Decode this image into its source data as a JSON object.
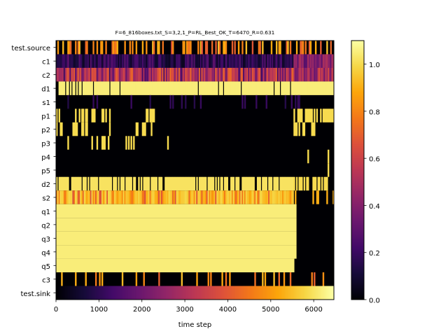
{
  "chart_data": {
    "type": "heatmap",
    "title": "F=6_816boxes.txt_S=3,2,1_P=RL_Best_OK_T=6470_R=0.631",
    "xlabel": "time step",
    "ylabel": "",
    "xlim": [
      0,
      6470
    ],
    "x_ticks": [
      0,
      1000,
      2000,
      3000,
      4000,
      5000,
      6000
    ],
    "colormap": "inferno",
    "color_range": [
      0.0,
      1.1
    ],
    "colorbar_ticks": [
      "0.0",
      "0.2",
      "0.4",
      "0.6",
      "0.8",
      "1.0"
    ],
    "colorbar_tick_values": [
      0.0,
      0.2,
      0.4,
      0.6,
      0.8,
      1.0
    ],
    "rows": [
      {
        "name": "test.source",
        "pattern": "sparse",
        "base": 0.0,
        "level": 0.95,
        "density": 0.38
      },
      {
        "name": "c1",
        "pattern": "dense",
        "base": 0.12,
        "level": 0.3,
        "density": 0.4,
        "tail": {
          "from": 5500,
          "value": 0.45
        }
      },
      {
        "name": "c2",
        "pattern": "dense",
        "base": 0.4,
        "level": 0.75,
        "density": 0.55,
        "tail": {
          "from": 5550,
          "value": 0.55
        }
      },
      {
        "name": "d1",
        "pattern": "mostly-high",
        "base": 1.05,
        "level": 0.0,
        "density": 0.07
      },
      {
        "name": "s1",
        "pattern": "sparse",
        "base": 0.0,
        "level": 0.2,
        "density": 0.1
      },
      {
        "name": "p1",
        "pattern": "bursts",
        "base": 0.0,
        "level": 1.0,
        "density": 0.3,
        "bursts": [
          [
            0,
            120
          ],
          [
            420,
            900
          ],
          [
            1000,
            1240
          ],
          [
            1950,
            2380
          ],
          [
            5450,
            6470
          ]
        ]
      },
      {
        "name": "p2",
        "pattern": "bursts",
        "base": 0.0,
        "level": 1.0,
        "density": 0.28,
        "bursts": [
          [
            0,
            120
          ],
          [
            380,
            780
          ],
          [
            1100,
            1300
          ],
          [
            1850,
            2250
          ],
          [
            5450,
            6000
          ]
        ]
      },
      {
        "name": "p3",
        "pattern": "bursts",
        "base": 0.0,
        "level": 1.0,
        "density": 0.2,
        "bursts": [
          [
            250,
            500
          ],
          [
            800,
            950
          ],
          [
            1050,
            1250
          ],
          [
            1550,
            1950
          ],
          [
            2550,
            2600
          ]
        ]
      },
      {
        "name": "p4",
        "pattern": "bursts",
        "base": 0.0,
        "level": 1.0,
        "density": 0.5,
        "bursts": [
          [
            5850,
            5900
          ],
          [
            6300,
            6350
          ]
        ]
      },
      {
        "name": "p5",
        "pattern": "bursts",
        "base": 0.0,
        "level": 1.0,
        "density": 0.5,
        "bursts": [
          [
            6300,
            6330
          ]
        ]
      },
      {
        "name": "d2",
        "pattern": "mostly-high",
        "base": 1.02,
        "level": 0.0,
        "density": 0.18,
        "end": 5500
      },
      {
        "name": "s2",
        "pattern": "mixed-high",
        "base": 0.95,
        "level": 0.8,
        "density": 0.35,
        "end": 5500
      },
      {
        "name": "q1",
        "pattern": "solid",
        "base": 1.05,
        "end": 5600
      },
      {
        "name": "q2",
        "pattern": "solid",
        "base": 1.05,
        "end": 5600
      },
      {
        "name": "q3",
        "pattern": "solid",
        "base": 1.05,
        "end": 5600
      },
      {
        "name": "q4",
        "pattern": "solid",
        "base": 1.05,
        "end": 5600
      },
      {
        "name": "q5",
        "pattern": "solid",
        "base": 1.05,
        "end": 5550
      },
      {
        "name": "c3",
        "pattern": "sparse",
        "base": 0.0,
        "level": 0.95,
        "density": 0.12
      },
      {
        "name": "test.sink",
        "pattern": "gradient",
        "from": 0.0,
        "to": 1.1
      }
    ]
  }
}
